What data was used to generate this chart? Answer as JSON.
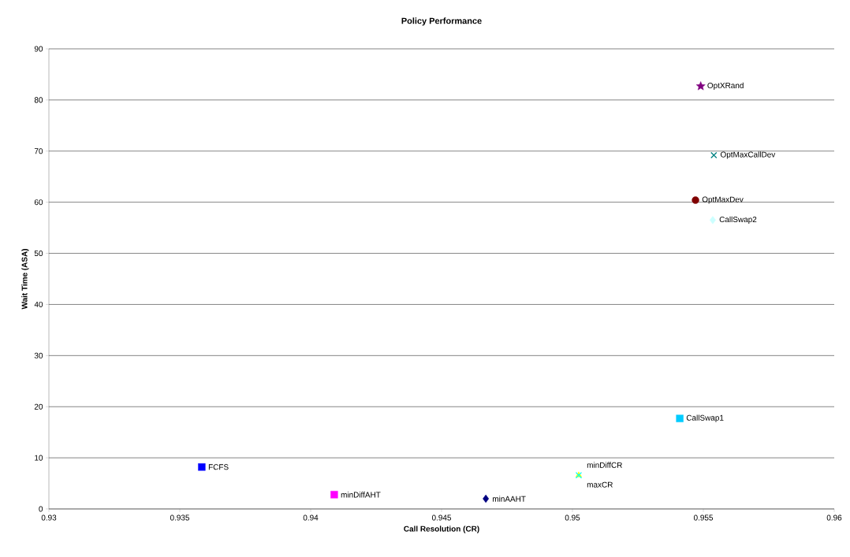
{
  "chart_data": {
    "type": "scatter",
    "title": "Policy Performance",
    "xlabel": "Call Resolution (CR)",
    "ylabel": "Wait Time (ASA)",
    "xlim": [
      0.93,
      0.96
    ],
    "xticks": [
      0.93,
      0.935,
      0.94,
      0.945,
      0.95,
      0.955,
      0.96
    ],
    "ylim": [
      0,
      90
    ],
    "yticks": [
      0,
      10,
      20,
      30,
      40,
      50,
      60,
      70,
      80,
      90
    ],
    "grid": "y",
    "series": [
      {
        "name": "FCFS",
        "color": "#0000ff",
        "marker": "square",
        "x": [
          0.93584
        ],
        "values": [
          8.2
        ]
      },
      {
        "name": "minDiffAHT",
        "color": "#ff00ff",
        "marker": "square",
        "x": [
          0.9409
        ],
        "values": [
          2.8
        ]
      },
      {
        "name": "minAAHT",
        "color": "#000080",
        "marker": "diamond",
        "x": [
          0.94669
        ],
        "values": [
          2.0
        ]
      },
      {
        "name": "maxCR",
        "color": "#ffff00",
        "marker": "triangle",
        "x": [
          0.95024
        ],
        "values": [
          6.6
        ]
      },
      {
        "name": "minDiffCR",
        "color": "#00ffff",
        "marker": "cross",
        "x": [
          0.95024
        ],
        "values": [
          6.6
        ]
      },
      {
        "name": "CallSwap1",
        "color": "#00ccff",
        "marker": "square",
        "x": [
          0.9541
        ],
        "values": [
          17.7
        ]
      },
      {
        "name": "CallSwap2",
        "color": "#ccffff",
        "marker": "diamond",
        "x": [
          0.95536
        ],
        "values": [
          56.5
        ]
      },
      {
        "name": "OptMaxDev",
        "color": "#800000",
        "marker": "circle",
        "x": [
          0.9547
        ],
        "values": [
          60.4
        ]
      },
      {
        "name": "OptMaxCallDev",
        "color": "#008080",
        "marker": "cross",
        "x": [
          0.9554
        ],
        "values": [
          69.2
        ]
      },
      {
        "name": "OptXRand",
        "color": "#800080",
        "marker": "star",
        "x": [
          0.9549
        ],
        "values": [
          82.7
        ]
      }
    ]
  }
}
